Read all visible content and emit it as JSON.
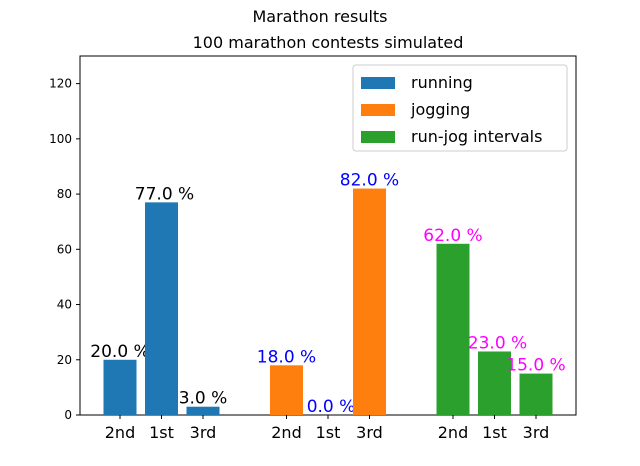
{
  "chart_data": {
    "type": "bar",
    "title": "Marathon results",
    "subtitle": "100 marathon contests simulated",
    "xlabel": "",
    "ylabel": "",
    "ylim": [
      0,
      130
    ],
    "yticks": [
      0,
      20,
      40,
      60,
      80,
      100,
      120
    ],
    "grid": false,
    "legend_position": "upper-right",
    "categories": [
      "2nd",
      "1st",
      "3rd"
    ],
    "series": [
      {
        "name": "running",
        "color": "#1f77b4",
        "label_color": "#000000",
        "values": [
          20,
          77,
          3
        ],
        "labels": [
          "20.0 %",
          "77.0 %",
          "3.0 %"
        ]
      },
      {
        "name": "jogging",
        "color": "#ff7f0e",
        "label_color": "#0000ff",
        "values": [
          18,
          0,
          82
        ],
        "labels": [
          "18.0 %",
          "0.0 %",
          "82.0 %"
        ]
      },
      {
        "name": "run-jog intervals",
        "color": "#2ca02c",
        "label_color": "#ff00ff",
        "values": [
          62,
          23,
          15
        ],
        "labels": [
          "62.0 %",
          "23.0 %",
          "15.0 %"
        ]
      }
    ]
  }
}
